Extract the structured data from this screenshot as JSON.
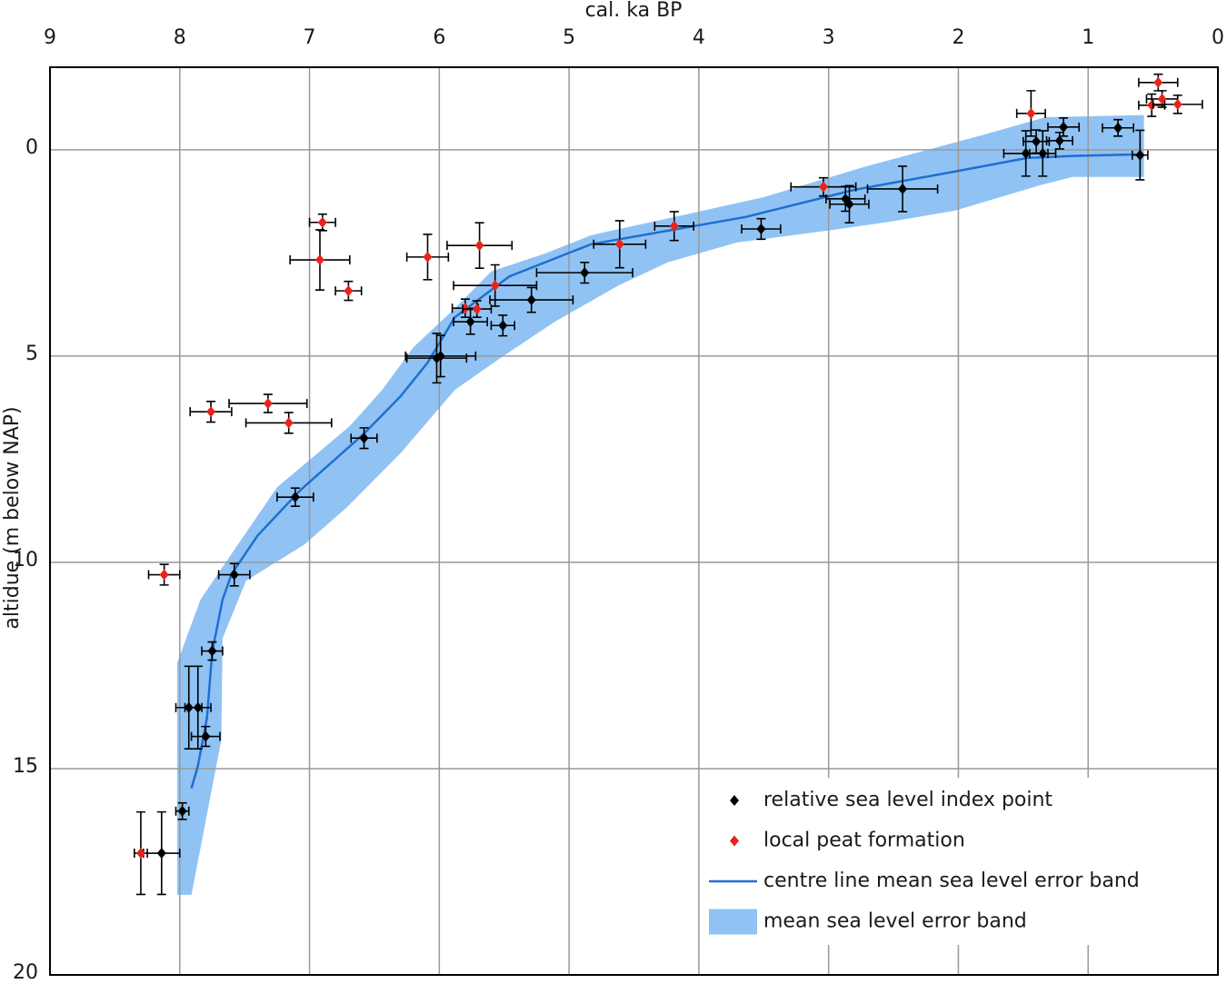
{
  "chart_data": {
    "type": "scatter",
    "x_label": "cal. ka BP",
    "y_label": "altidue (m below NAP)",
    "xlim": [
      9,
      0
    ],
    "ylim": [
      -2,
      20
    ],
    "xticks": [
      9,
      8,
      7,
      6,
      5,
      4,
      3,
      2,
      1,
      0
    ],
    "yticks": [
      0,
      5,
      10,
      15,
      20
    ],
    "grid": true,
    "legend": "lower right",
    "series": [
      {
        "name": "relative sea level index point",
        "type": "errorbar",
        "color": "#000000",
        "x": [
          0.6,
          0.77,
          1.19,
          1.22,
          1.4,
          1.48,
          1.35,
          2.43,
          2.87,
          2.84,
          3.52,
          4.88,
          5.29,
          5.76,
          5.51,
          5.99,
          6.02,
          6.58,
          7.11,
          7.58,
          7.75,
          7.93,
          7.86,
          7.8,
          7.98,
          8.14
        ],
        "y": [
          0.13,
          -0.53,
          -0.55,
          -0.22,
          -0.2,
          0.09,
          0.09,
          0.95,
          1.19,
          1.32,
          1.92,
          2.98,
          3.64,
          4.17,
          4.26,
          5.0,
          5.05,
          6.99,
          8.42,
          10.3,
          12.15,
          13.52,
          13.52,
          14.22,
          16.03,
          17.05
        ],
        "xerr": [
          0.06,
          0.12,
          0.12,
          0.1,
          0.1,
          0.17,
          0.1,
          0.27,
          0.15,
          0.15,
          0.15,
          0.37,
          0.32,
          0.13,
          0.09,
          0.27,
          0.23,
          0.1,
          0.14,
          0.12,
          0.08,
          0.1,
          0.1,
          0.11,
          0.05,
          0.14
        ],
        "yerr": [
          0.6,
          0.2,
          0.22,
          0.2,
          0.28,
          0.55,
          0.55,
          0.55,
          0.3,
          0.45,
          0.25,
          0.25,
          0.3,
          0.3,
          0.25,
          0.5,
          0.6,
          0.25,
          0.22,
          0.27,
          0.22,
          1.0,
          1.0,
          0.24,
          0.2,
          1.0
        ]
      },
      {
        "name": "local peat formation",
        "type": "errorbar",
        "color": "#e8231a",
        "x": [
          0.46,
          0.43,
          0.51,
          0.31,
          1.44,
          3.04,
          4.19,
          4.61,
          5.69,
          6.09,
          5.57,
          5.8,
          5.71,
          6.9,
          6.92,
          6.7,
          7.32,
          7.16,
          7.76,
          8.12,
          8.3
        ],
        "y": [
          -1.63,
          -1.23,
          -1.08,
          -1.1,
          -0.88,
          0.9,
          1.85,
          2.29,
          2.32,
          2.6,
          3.29,
          3.84,
          3.86,
          1.76,
          2.67,
          3.42,
          6.15,
          6.62,
          6.35,
          10.3,
          17.05
        ],
        "xerr": [
          0.15,
          0.12,
          0.1,
          0.19,
          0.11,
          0.25,
          0.15,
          0.2,
          0.25,
          0.16,
          0.32,
          0.1,
          0.11,
          0.1,
          0.23,
          0.1,
          0.3,
          0.33,
          0.16,
          0.12,
          0.05
        ],
        "yerr": [
          0.2,
          0.2,
          0.27,
          0.22,
          0.55,
          0.22,
          0.35,
          0.57,
          0.55,
          0.55,
          0.5,
          0.22,
          0.2,
          0.2,
          0.73,
          0.23,
          0.22,
          0.25,
          0.25,
          0.25,
          1.0
        ]
      },
      {
        "name": "centre line mean sea level error band",
        "type": "line",
        "color": "#1f6fd1",
        "x": [
          7.91,
          7.86,
          7.79,
          7.75,
          7.67,
          7.6,
          7.4,
          7.07,
          6.58,
          6.3,
          6.09,
          5.88,
          5.46,
          4.83,
          3.64,
          2.8,
          2.03,
          1.47,
          1.12,
          0.6
        ],
        "y": [
          15.48,
          14.93,
          13.76,
          12.17,
          10.9,
          10.28,
          9.35,
          8.25,
          6.88,
          5.98,
          5.16,
          4.06,
          3.07,
          2.29,
          1.63,
          0.97,
          0.53,
          0.2,
          0.15,
          0.11
        ]
      },
      {
        "name": "mean sea level error band",
        "type": "band",
        "color": "#90c3f4",
        "x": [
          8.02,
          8.02,
          7.84,
          7.6,
          7.25,
          6.69,
          6.44,
          6.2,
          5.88,
          5.6,
          5.18,
          4.83,
          4.13,
          3.5,
          2.73,
          1.82,
          1.33,
          0.57,
          0.57,
          1.12,
          1.37,
          2.03,
          2.52,
          3.01,
          3.71,
          4.24,
          4.62,
          5.11,
          5.53,
          5.88,
          6.3,
          6.72,
          7.04,
          7.49,
          7.67,
          7.68,
          7.91
        ],
        "y": [
          18.06,
          12.44,
          10.9,
          9.79,
          8.18,
          6.7,
          5.82,
          4.79,
          3.84,
          2.95,
          2.51,
          2.07,
          1.59,
          1.15,
          0.42,
          -0.35,
          -0.79,
          -0.84,
          0.66,
          0.66,
          0.86,
          1.48,
          1.74,
          1.96,
          2.25,
          2.73,
          3.29,
          4.17,
          5.05,
          5.82,
          7.36,
          8.69,
          9.57,
          10.45,
          11.84,
          14.31,
          18.06
        ]
      }
    ]
  }
}
